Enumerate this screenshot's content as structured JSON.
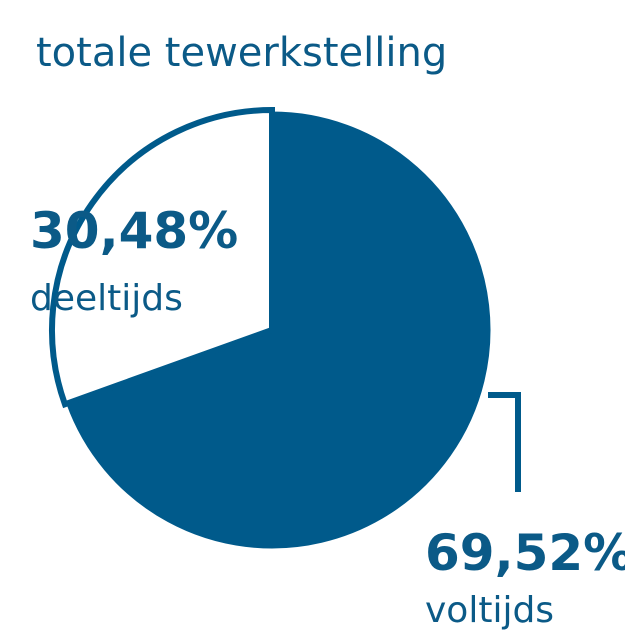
{
  "chart_data": {
    "type": "pie",
    "title": "totale tewerkstelling",
    "categories": [
      "voltijds",
      "deeltijds"
    ],
    "values": [
      69.52,
      30.48
    ],
    "value_labels": [
      "69,52%",
      "30,48%"
    ],
    "colors": [
      "#005a8b",
      "#ffffff"
    ],
    "outline_color": "#005a8b"
  }
}
